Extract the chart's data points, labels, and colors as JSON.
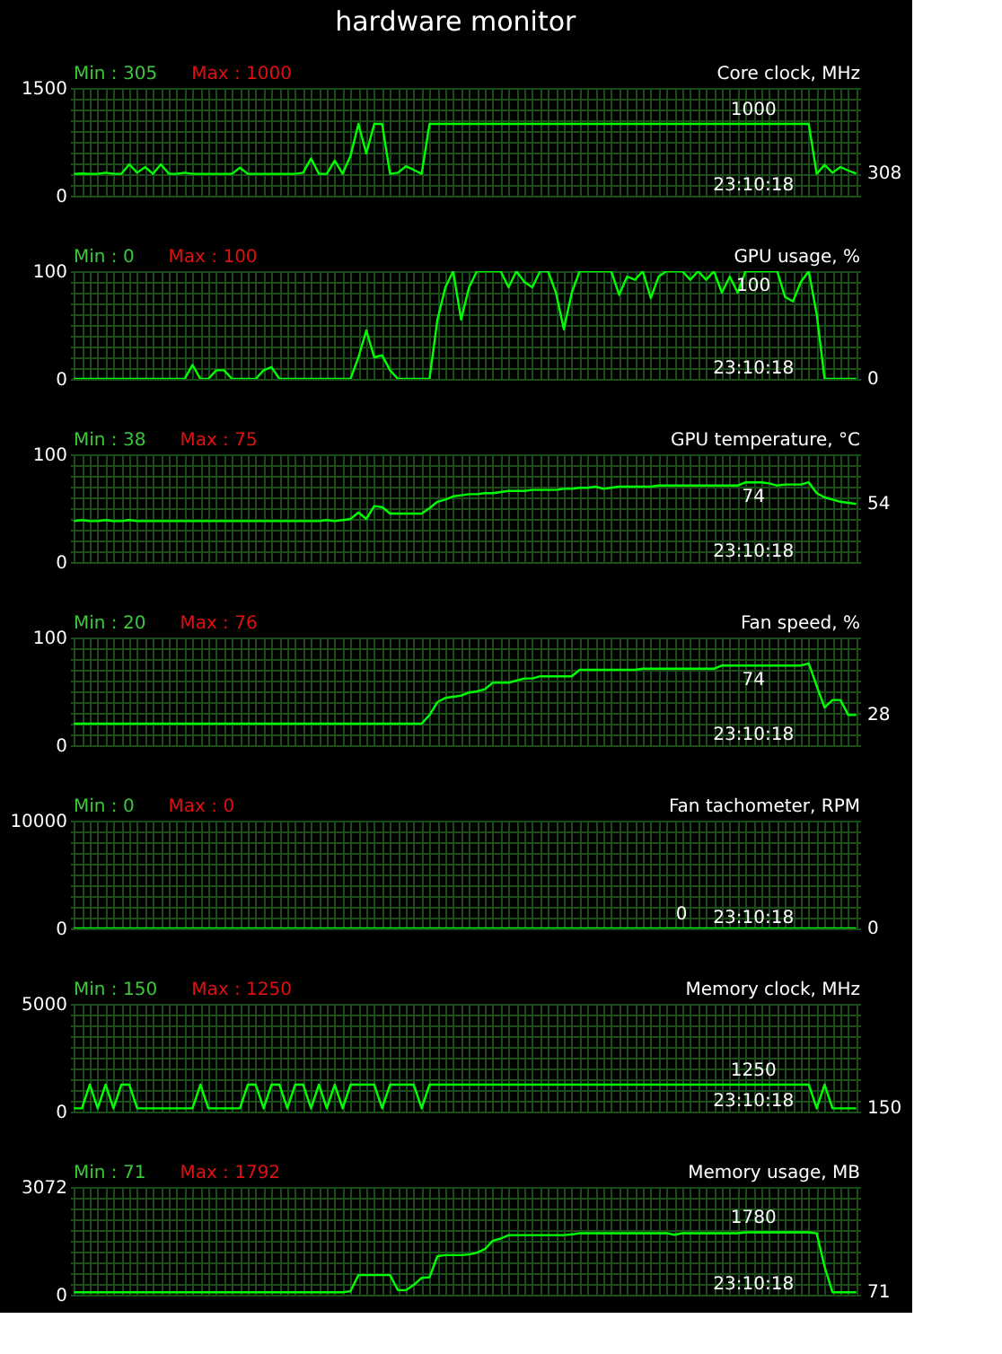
{
  "chart_data": [
    {
      "type": "other",
      "title": "hardware monitor"
    },
    {
      "type": "line",
      "title": "Core clock, MHz",
      "color": "#00ff00",
      "grid": true,
      "tick_labels": "y",
      "annotations": [
        "Min : 305",
        "Max : 1000",
        "23:10:18",
        "1000",
        "308"
      ],
      "ylim": [
        0,
        1500
      ],
      "yticks": [
        0,
        {
          "value": 150,
          "label": null
        },
        {
          "value": 300,
          "label": null
        },
        {
          "value": 450,
          "label": null
        },
        {
          "value": 600,
          "label": null
        },
        {
          "value": 750,
          "label": null
        },
        {
          "value": 900,
          "label": null
        },
        {
          "value": 1050,
          "label": null
        },
        {
          "value": 1200,
          "label": null
        },
        {
          "value": 1350,
          "label": null
        },
        1500
      ],
      "categories": [
        null,
        null,
        null,
        null,
        null,
        null,
        null,
        null,
        null,
        null,
        null,
        null,
        null,
        null,
        null,
        null,
        null,
        null,
        null,
        null,
        null,
        null,
        null,
        null,
        null,
        null,
        null,
        null,
        null,
        null,
        null,
        null,
        null,
        null,
        null,
        null,
        null,
        null,
        null,
        null,
        null,
        null,
        null,
        null,
        null,
        null,
        null,
        null,
        null,
        null,
        null,
        null,
        null,
        null,
        null,
        null,
        null,
        null,
        null,
        null,
        null,
        null,
        null,
        null,
        null,
        null,
        null,
        null,
        null,
        null,
        null,
        null,
        null,
        null,
        null,
        null,
        null,
        null,
        null,
        null,
        null,
        null,
        null,
        null,
        null,
        null,
        null,
        null,
        null,
        null,
        null,
        null,
        null,
        null,
        null,
        null,
        null,
        null,
        null,
        null
      ],
      "values": [
        305,
        310,
        305,
        305,
        320,
        305,
        305,
        437,
        320,
        400,
        305,
        437,
        305,
        305,
        320,
        305,
        305,
        305,
        305,
        305,
        305,
        390,
        305,
        305,
        305,
        305,
        305,
        305,
        305,
        320,
        520,
        305,
        305,
        490,
        305,
        555,
        1000,
        587,
        1000,
        1000,
        305,
        320,
        410,
        360,
        305,
        1000,
        1000,
        1000,
        1000,
        1000,
        1000,
        1000,
        1000,
        1000,
        1000,
        1000,
        1000,
        1000,
        1000,
        1000,
        1000,
        1000,
        1000,
        1000,
        1000,
        1000,
        1000,
        1000,
        1000,
        1000,
        1000,
        1000,
        1000,
        1000,
        1000,
        1000,
        1000,
        1000,
        1000,
        1000,
        1000,
        1000,
        1000,
        1000,
        1000,
        1000,
        1000,
        1000,
        1000,
        1000,
        1000,
        1000,
        1000,
        1000,
        305,
        430,
        320,
        400,
        350,
        308
      ]
    },
    {
      "type": "line",
      "title": "GPU usage, %",
      "color": "#00ff00",
      "grid": true,
      "tick_labels": "y",
      "annotations": [
        "Min : 0",
        "Max : 100",
        "23:10:18",
        "100",
        "0"
      ],
      "ylim": [
        0,
        100
      ],
      "yticks": [
        0,
        {
          "value": 10,
          "label": null
        },
        {
          "value": 20,
          "label": null
        },
        {
          "value": 30,
          "label": null
        },
        {
          "value": 40,
          "label": null
        },
        {
          "value": 50,
          "label": null
        },
        {
          "value": 60,
          "label": null
        },
        {
          "value": 70,
          "label": null
        },
        {
          "value": 80,
          "label": null
        },
        {
          "value": 90,
          "label": null
        },
        100
      ],
      "categories": [
        null,
        null,
        null,
        null,
        null,
        null,
        null,
        null,
        null,
        null,
        null,
        null,
        null,
        null,
        null,
        null,
        null,
        null,
        null,
        null,
        null,
        null,
        null,
        null,
        null,
        null,
        null,
        null,
        null,
        null,
        null,
        null,
        null,
        null,
        null,
        null,
        null,
        null,
        null,
        null,
        null,
        null,
        null,
        null,
        null,
        null,
        null,
        null,
        null,
        null,
        null,
        null,
        null,
        null,
        null,
        null,
        null,
        null,
        null,
        null,
        null,
        null,
        null,
        null,
        null,
        null,
        null,
        null,
        null,
        null,
        null,
        null,
        null,
        null,
        null,
        null,
        null,
        null,
        null,
        null,
        null,
        null,
        null,
        null,
        null,
        null,
        null,
        null,
        null,
        null,
        null,
        null,
        null,
        null,
        null,
        null,
        null,
        null,
        null,
        null
      ],
      "values": [
        0,
        0,
        0,
        0,
        0,
        0,
        0,
        0,
        0,
        0,
        0,
        0,
        0,
        0,
        0,
        13,
        0,
        0,
        8,
        8,
        0,
        0,
        0,
        0,
        8,
        11,
        0,
        0,
        0,
        0,
        0,
        0,
        0,
        0,
        0,
        0,
        20,
        45,
        20,
        22,
        8,
        0,
        0,
        0,
        0,
        0,
        55,
        85,
        100,
        55,
        85,
        100,
        100,
        100,
        100,
        85,
        100,
        90,
        85,
        100,
        100,
        80,
        46,
        80,
        100,
        100,
        100,
        100,
        100,
        78,
        95,
        92,
        100,
        75,
        95,
        100,
        100,
        100,
        92,
        100,
        92,
        100,
        80,
        95,
        80,
        100,
        100,
        100,
        100,
        100,
        76,
        72,
        90,
        100,
        60,
        0,
        0,
        0,
        0,
        0
      ]
    },
    {
      "type": "line",
      "title": "GPU temperature, °C",
      "color": "#00ff00",
      "grid": true,
      "tick_labels": "y",
      "annotations": [
        "Min : 38",
        "Max : 75",
        "23:10:18",
        "74",
        "54"
      ],
      "ylim": [
        0,
        100
      ],
      "yticks": [
        0,
        {
          "value": 10,
          "label": null
        },
        {
          "value": 20,
          "label": null
        },
        {
          "value": 30,
          "label": null
        },
        {
          "value": 40,
          "label": null
        },
        {
          "value": 50,
          "label": null
        },
        {
          "value": 60,
          "label": null
        },
        {
          "value": 70,
          "label": null
        },
        {
          "value": 80,
          "label": null
        },
        {
          "value": 90,
          "label": null
        },
        100
      ],
      "categories": [
        null,
        null,
        null,
        null,
        null,
        null,
        null,
        null,
        null,
        null,
        null,
        null,
        null,
        null,
        null,
        null,
        null,
        null,
        null,
        null,
        null,
        null,
        null,
        null,
        null,
        null,
        null,
        null,
        null,
        null,
        null,
        null,
        null,
        null,
        null,
        null,
        null,
        null,
        null,
        null,
        null,
        null,
        null,
        null,
        null,
        null,
        null,
        null,
        null,
        null,
        null,
        null,
        null,
        null,
        null,
        null,
        null,
        null,
        null,
        null,
        null,
        null,
        null,
        null,
        null,
        null,
        null,
        null,
        null,
        null,
        null,
        null,
        null,
        null,
        null,
        null,
        null,
        null,
        null,
        null,
        null,
        null,
        null,
        null,
        null,
        null,
        null,
        null,
        null,
        null,
        null,
        null,
        null,
        null,
        null,
        null,
        null,
        null,
        null,
        null
      ],
      "values": [
        38,
        39,
        38,
        38,
        39,
        38,
        38,
        39,
        38,
        38,
        38,
        38,
        38,
        38,
        38,
        38,
        38,
        38,
        38,
        38,
        38,
        38,
        38,
        38,
        38,
        38,
        38,
        38,
        38,
        38,
        38,
        38,
        39,
        38,
        39,
        40,
        46,
        40,
        52,
        51,
        45,
        45,
        45,
        45,
        45,
        50,
        56,
        58,
        61,
        62,
        63,
        63,
        64,
        64,
        65,
        66,
        66,
        66,
        67,
        67,
        67,
        67,
        68,
        68,
        69,
        69,
        70,
        68,
        69,
        70,
        70,
        70,
        70,
        70,
        71,
        71,
        71,
        71,
        71,
        71,
        71,
        71,
        71,
        71,
        71,
        74,
        74,
        74,
        73,
        71,
        72,
        72,
        72,
        74,
        64,
        60,
        58,
        56,
        55,
        54
      ]
    },
    {
      "type": "line",
      "title": "Fan speed, %",
      "color": "#00ff00",
      "grid": true,
      "tick_labels": "y",
      "annotations": [
        "Min : 20",
        "Max : 76",
        "23:10:18",
        "74",
        "28"
      ],
      "ylim": [
        0,
        100
      ],
      "yticks": [
        0,
        {
          "value": 10,
          "label": null
        },
        {
          "value": 20,
          "label": null
        },
        {
          "value": 30,
          "label": null
        },
        {
          "value": 40,
          "label": null
        },
        {
          "value": 50,
          "label": null
        },
        {
          "value": 60,
          "label": null
        },
        {
          "value": 70,
          "label": null
        },
        {
          "value": 80,
          "label": null
        },
        {
          "value": 90,
          "label": null
        },
        100
      ],
      "categories": [
        null,
        null,
        null,
        null,
        null,
        null,
        null,
        null,
        null,
        null,
        null,
        null,
        null,
        null,
        null,
        null,
        null,
        null,
        null,
        null,
        null,
        null,
        null,
        null,
        null,
        null,
        null,
        null,
        null,
        null,
        null,
        null,
        null,
        null,
        null,
        null,
        null,
        null,
        null,
        null,
        null,
        null,
        null,
        null,
        null,
        null,
        null,
        null,
        null,
        null,
        null,
        null,
        null,
        null,
        null,
        null,
        null,
        null,
        null,
        null,
        null,
        null,
        null,
        null,
        null,
        null,
        null,
        null,
        null,
        null,
        null,
        null,
        null,
        null,
        null,
        null,
        null,
        null,
        null,
        null,
        null,
        null,
        null,
        null,
        null,
        null,
        null,
        null,
        null,
        null,
        null,
        null,
        null,
        null,
        null,
        null,
        null,
        null,
        null,
        null
      ],
      "values": [
        20,
        20,
        20,
        20,
        20,
        20,
        20,
        20,
        20,
        20,
        20,
        20,
        20,
        20,
        20,
        20,
        20,
        20,
        20,
        20,
        20,
        20,
        20,
        20,
        20,
        20,
        20,
        20,
        20,
        20,
        20,
        20,
        20,
        20,
        20,
        20,
        20,
        20,
        20,
        20,
        20,
        20,
        20,
        20,
        20,
        28,
        40,
        44,
        45,
        46,
        49,
        50,
        52,
        58,
        58,
        58,
        60,
        62,
        62,
        64,
        64,
        64,
        64,
        64,
        70,
        70,
        70,
        70,
        70,
        70,
        70,
        70,
        71,
        71,
        71,
        71,
        71,
        71,
        71,
        71,
        71,
        71,
        74,
        74,
        74,
        74,
        74,
        74,
        74,
        74,
        74,
        74,
        74,
        76,
        55,
        35,
        42,
        42,
        28,
        28
      ]
    },
    {
      "type": "line",
      "title": "Fan tachometer, RPM",
      "color": "#00ff00",
      "grid": true,
      "tick_labels": "y",
      "annotations": [
        "Min : 0",
        "Max : 0",
        "23:10:18",
        "0",
        "0"
      ],
      "ylim": [
        0,
        10000
      ],
      "yticks": [
        0,
        {
          "value": 1000,
          "label": null
        },
        {
          "value": 2000,
          "label": null
        },
        {
          "value": 3000,
          "label": null
        },
        {
          "value": 4000,
          "label": null
        },
        {
          "value": 5000,
          "label": null
        },
        {
          "value": 6000,
          "label": null
        },
        {
          "value": 7000,
          "label": null
        },
        {
          "value": 8000,
          "label": null
        },
        {
          "value": 9000,
          "label": null
        },
        10000
      ],
      "categories": [
        null,
        null,
        null,
        null,
        null,
        null,
        null,
        null,
        null,
        null,
        null,
        null,
        null,
        null,
        null,
        null,
        null,
        null,
        null,
        null,
        null,
        null,
        null,
        null,
        null,
        null,
        null,
        null,
        null,
        null,
        null,
        null,
        null,
        null,
        null,
        null,
        null,
        null,
        null,
        null,
        null,
        null,
        null,
        null,
        null,
        null,
        null,
        null,
        null,
        null,
        null,
        null,
        null,
        null,
        null,
        null,
        null,
        null,
        null,
        null,
        null,
        null,
        null,
        null,
        null,
        null,
        null,
        null,
        null,
        null,
        null,
        null,
        null,
        null,
        null,
        null,
        null,
        null,
        null,
        null,
        null,
        null,
        null,
        null,
        null,
        null,
        null,
        null,
        null,
        null,
        null,
        null,
        null,
        null,
        null,
        null,
        null,
        null,
        null,
        null
      ],
      "values": [
        0,
        0,
        0,
        0,
        0,
        0,
        0,
        0,
        0,
        0,
        0,
        0,
        0,
        0,
        0,
        0,
        0,
        0,
        0,
        0,
        0,
        0,
        0,
        0,
        0,
        0,
        0,
        0,
        0,
        0,
        0,
        0,
        0,
        0,
        0,
        0,
        0,
        0,
        0,
        0,
        0,
        0,
        0,
        0,
        0,
        0,
        0,
        0,
        0,
        0,
        0,
        0,
        0,
        0,
        0,
        0,
        0,
        0,
        0,
        0,
        0,
        0,
        0,
        0,
        0,
        0,
        0,
        0,
        0,
        0,
        0,
        0,
        0,
        0,
        0,
        0,
        0,
        0,
        0,
        0,
        0,
        0,
        0,
        0,
        0,
        0,
        0,
        0,
        0,
        0,
        0,
        0,
        0,
        0,
        0,
        0,
        0,
        0,
        0,
        0
      ]
    },
    {
      "type": "line",
      "title": "Memory clock, MHz",
      "color": "#00ff00",
      "grid": true,
      "tick_labels": "y",
      "annotations": [
        "Min : 150",
        "Max : 1250",
        "23:10:18",
        "1250",
        "150"
      ],
      "ylim": [
        0,
        5000
      ],
      "yticks": [
        0,
        {
          "value": 500,
          "label": null
        },
        {
          "value": 1000,
          "label": null
        },
        {
          "value": 1500,
          "label": null
        },
        {
          "value": 2000,
          "label": null
        },
        {
          "value": 2500,
          "label": null
        },
        {
          "value": 3000,
          "label": null
        },
        {
          "value": 3500,
          "label": null
        },
        {
          "value": 4000,
          "label": null
        },
        {
          "value": 4500,
          "label": null
        },
        5000
      ],
      "categories": [
        null,
        null,
        null,
        null,
        null,
        null,
        null,
        null,
        null,
        null,
        null,
        null,
        null,
        null,
        null,
        null,
        null,
        null,
        null,
        null,
        null,
        null,
        null,
        null,
        null,
        null,
        null,
        null,
        null,
        null,
        null,
        null,
        null,
        null,
        null,
        null,
        null,
        null,
        null,
        null,
        null,
        null,
        null,
        null,
        null,
        null,
        null,
        null,
        null,
        null,
        null,
        null,
        null,
        null,
        null,
        null,
        null,
        null,
        null,
        null,
        null,
        null,
        null,
        null,
        null,
        null,
        null,
        null,
        null,
        null,
        null,
        null,
        null,
        null,
        null,
        null,
        null,
        null,
        null,
        null,
        null,
        null,
        null,
        null,
        null,
        null,
        null,
        null,
        null,
        null,
        null,
        null,
        null,
        null,
        null,
        null,
        null,
        null,
        null,
        null
      ],
      "values": [
        150,
        150,
        1250,
        150,
        1250,
        150,
        1250,
        1250,
        150,
        150,
        150,
        150,
        150,
        150,
        150,
        150,
        1250,
        150,
        150,
        150,
        150,
        150,
        1250,
        1250,
        150,
        1250,
        1250,
        150,
        1250,
        1250,
        150,
        1250,
        150,
        1250,
        150,
        1250,
        1250,
        1250,
        1250,
        150,
        1250,
        1250,
        1250,
        1250,
        150,
        1250,
        1250,
        1250,
        1250,
        1250,
        1250,
        1250,
        1250,
        1250,
        1250,
        1250,
        1250,
        1250,
        1250,
        1250,
        1250,
        1250,
        1250,
        1250,
        1250,
        1250,
        1250,
        1250,
        1250,
        1250,
        1250,
        1250,
        1250,
        1250,
        1250,
        1250,
        1250,
        1250,
        1250,
        1250,
        1250,
        1250,
        1250,
        1250,
        1250,
        1250,
        1250,
        1250,
        1250,
        1250,
        1250,
        1250,
        1250,
        1250,
        150,
        1250,
        150,
        150,
        150,
        150
      ]
    },
    {
      "type": "line",
      "title": "Memory usage, MB",
      "color": "#00ff00",
      "grid": true,
      "tick_labels": "y",
      "annotations": [
        "Min : 71",
        "Max : 1792",
        "23:10:18",
        "1780",
        "71"
      ],
      "ylim": [
        0,
        3072
      ],
      "yticks": [
        0,
        {
          "value": 307.2,
          "label": null
        },
        {
          "value": 614.4,
          "label": null
        },
        {
          "value": 921.6,
          "label": null
        },
        {
          "value": 1228.8,
          "label": null
        },
        {
          "value": 1536,
          "label": null
        },
        {
          "value": 1843.2,
          "label": null
        },
        {
          "value": 2150.4,
          "label": null
        },
        {
          "value": 2457.6,
          "label": null
        },
        {
          "value": 2764.8,
          "label": null
        },
        3072
      ],
      "categories": [
        null,
        null,
        null,
        null,
        null,
        null,
        null,
        null,
        null,
        null,
        null,
        null,
        null,
        null,
        null,
        null,
        null,
        null,
        null,
        null,
        null,
        null,
        null,
        null,
        null,
        null,
        null,
        null,
        null,
        null,
        null,
        null,
        null,
        null,
        null,
        null,
        null,
        null,
        null,
        null,
        null,
        null,
        null,
        null,
        null,
        null,
        null,
        null,
        null,
        null,
        null,
        null,
        null,
        null,
        null,
        null,
        null,
        null,
        null,
        null,
        null,
        null,
        null,
        null,
        null,
        null,
        null,
        null,
        null,
        null,
        null,
        null,
        null,
        null,
        null,
        null,
        null,
        null,
        null,
        null,
        null,
        null,
        null,
        null,
        null,
        null,
        null,
        null,
        null,
        null,
        null,
        null,
        null,
        null,
        null,
        null,
        null,
        null,
        null,
        null
      ],
      "values": [
        71,
        71,
        71,
        71,
        71,
        71,
        71,
        71,
        71,
        71,
        71,
        71,
        71,
        71,
        71,
        71,
        71,
        71,
        71,
        71,
        71,
        71,
        71,
        71,
        71,
        71,
        71,
        71,
        71,
        71,
        71,
        71,
        71,
        71,
        71,
        100,
        560,
        560,
        560,
        560,
        560,
        130,
        130,
        280,
        480,
        500,
        1100,
        1130,
        1130,
        1130,
        1150,
        1200,
        1300,
        1540,
        1600,
        1700,
        1700,
        1700,
        1700,
        1700,
        1700,
        1700,
        1700,
        1720,
        1755,
        1755,
        1755,
        1755,
        1755,
        1755,
        1755,
        1755,
        1755,
        1755,
        1755,
        1755,
        1710,
        1755,
        1755,
        1755,
        1755,
        1755,
        1755,
        1755,
        1755,
        1780,
        1780,
        1780,
        1780,
        1780,
        1780,
        1780,
        1780,
        1780,
        1750,
        800,
        71,
        71,
        71,
        71
      ]
    }
  ]
}
